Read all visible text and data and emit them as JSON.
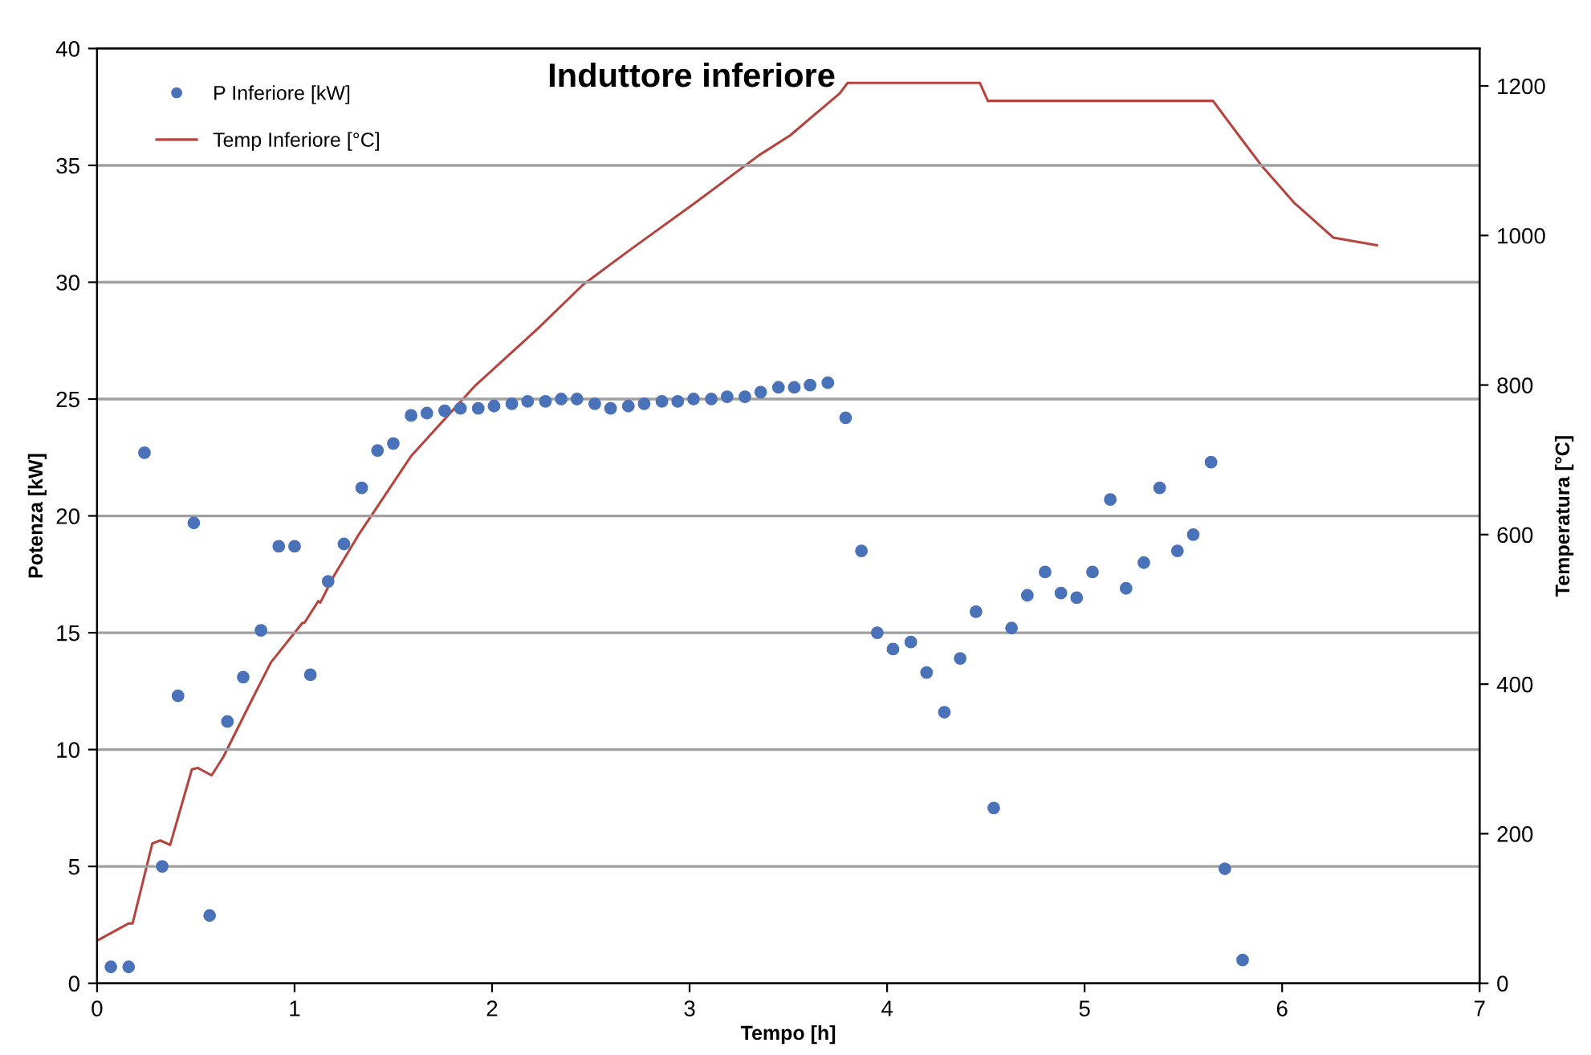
{
  "chart_data": {
    "type": "scatter",
    "title": "Induttore inferiore",
    "xlabel": "Tempo [h]",
    "ylabel": "Potenza [kW]",
    "y2label": "Temperatura [°C]",
    "xlim": [
      0,
      7
    ],
    "xticks": [
      0,
      1,
      2,
      3,
      4,
      5,
      6,
      7
    ],
    "ylim": [
      0,
      40
    ],
    "yticks": [
      0,
      5,
      10,
      15,
      20,
      25,
      30,
      35,
      40
    ],
    "y2lim": [
      0,
      1250
    ],
    "y2ticks": [
      0,
      200,
      400,
      600,
      800,
      1000,
      1200
    ],
    "grid": "y",
    "legend": "top left",
    "series": [
      {
        "name": "P Inferiore [kW]",
        "marker": "circle",
        "color": "#4a72b8",
        "x": [
          0.07,
          0.16,
          0.24,
          0.33,
          0.41,
          0.49,
          0.57,
          0.66,
          0.74,
          0.83,
          0.92,
          1.0,
          1.08,
          1.17,
          1.25,
          1.34,
          1.42,
          1.5,
          1.59,
          1.67,
          1.76,
          1.84,
          1.93,
          2.01,
          2.1,
          2.18,
          2.27,
          2.35,
          2.43,
          2.52,
          2.6,
          2.69,
          2.77,
          2.86,
          2.94,
          3.02,
          3.11,
          3.19,
          3.28,
          3.36,
          3.45,
          3.53,
          3.61,
          3.7,
          3.79,
          3.87,
          3.95,
          4.03,
          4.12,
          4.2,
          4.29,
          4.37,
          4.45,
          4.54,
          4.63,
          4.71,
          4.8,
          4.88,
          4.96,
          5.04,
          5.13,
          5.21,
          5.3,
          5.38,
          5.47,
          5.55,
          5.64,
          5.71,
          5.8
        ],
        "values": [
          0.7,
          0.7,
          22.7,
          5.0,
          12.3,
          19.7,
          2.9,
          11.2,
          13.1,
          15.1,
          18.7,
          18.7,
          13.2,
          17.2,
          18.8,
          21.2,
          22.8,
          23.1,
          24.3,
          24.4,
          24.5,
          24.6,
          24.6,
          24.7,
          24.8,
          24.9,
          24.9,
          25.0,
          25.0,
          24.8,
          24.6,
          24.7,
          24.8,
          24.9,
          24.9,
          25.0,
          25.0,
          25.1,
          25.1,
          25.3,
          25.5,
          25.5,
          25.6,
          25.7,
          24.2,
          18.5,
          15.0,
          14.3,
          14.6,
          13.3,
          11.6,
          13.9,
          15.9,
          7.5,
          15.2,
          16.6,
          17.6,
          16.7,
          16.5,
          17.6,
          20.7,
          16.9,
          18.0,
          21.2,
          18.5,
          19.2,
          22.3,
          4.9,
          1.0
        ]
      },
      {
        "name": "Temp Inferiore [°C]",
        "type": "line",
        "axis": "y2",
        "color": "#b5443f",
        "marker": "none",
        "line_style": "solid",
        "x": [
          0,
          0.16,
          0.18,
          0.28,
          0.32,
          0.37,
          0.48,
          0.51,
          0.58,
          0.64,
          0.78,
          0.88,
          1.04,
          1.05,
          1.12,
          1.13,
          1.2,
          1.32,
          1.59,
          1.91,
          2.23,
          2.46,
          2.71,
          3.03,
          3.35,
          3.51,
          3.76,
          3.8,
          4.47,
          4.51,
          5.65,
          5.78,
          5.9,
          6.06,
          6.26,
          6.48
        ],
        "values": [
          57,
          80,
          80,
          187,
          191,
          185,
          286,
          288,
          278,
          303,
          377,
          429,
          482,
          482,
          511,
          509,
          545,
          598,
          705,
          798,
          875,
          934,
          983,
          1044,
          1107,
          1134,
          1190,
          1204,
          1204,
          1180,
          1180,
          1134,
          1092,
          1044,
          997,
          987
        ]
      }
    ]
  }
}
